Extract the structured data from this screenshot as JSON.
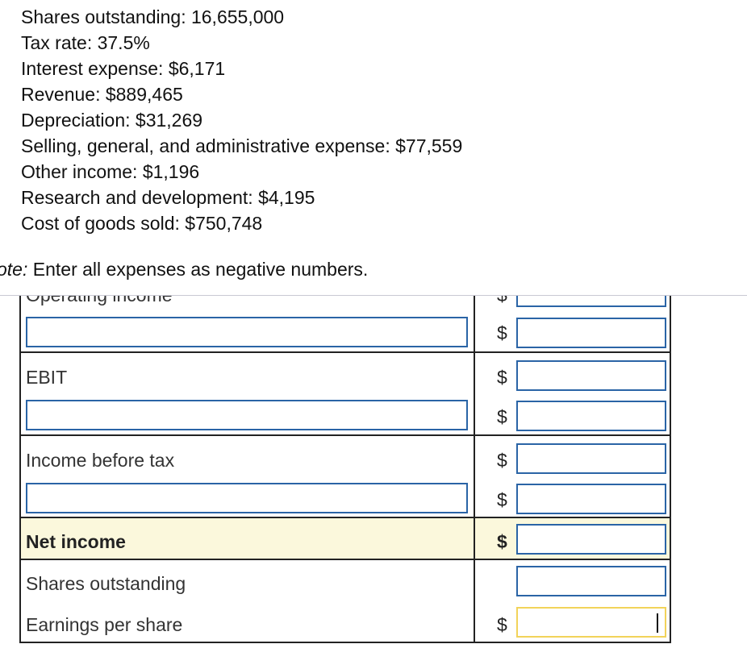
{
  "facts": [
    "Shares outstanding:  16,655,000",
    "Tax rate:  37.5%",
    "Interest expense:  $6,171",
    "Revenue:  $889,465",
    "Depreciation:  $31,269",
    "Selling, general, and administrative expense:  $77,559",
    "Other income:  $1,196",
    "Research and development:  $4,195",
    "Cost of goods sold:  $750,748"
  ],
  "note": {
    "prefix": "ote:",
    "text": "  Enter all expenses as negative numbers."
  },
  "table": {
    "currency_symbol": "$",
    "rows": {
      "operating_income": {
        "label": "Operating income",
        "value": ""
      },
      "blank_1": {
        "label_value": "",
        "value": ""
      },
      "ebit": {
        "label": "EBIT",
        "value": ""
      },
      "blank_2": {
        "label_value": "",
        "value": ""
      },
      "income_before_tax": {
        "label": "Income before tax",
        "value": ""
      },
      "blank_3": {
        "label_value": "",
        "value": ""
      },
      "net_income": {
        "label": "Net income",
        "value": ""
      },
      "shares_outstanding": {
        "label": "Shares outstanding",
        "value": ""
      },
      "eps": {
        "label": "Earnings per share",
        "value": ""
      }
    }
  },
  "colors": {
    "input_border": "#2a64a6",
    "focused_border": "#f2d35a",
    "highlight_row": "#fbf8dc"
  }
}
